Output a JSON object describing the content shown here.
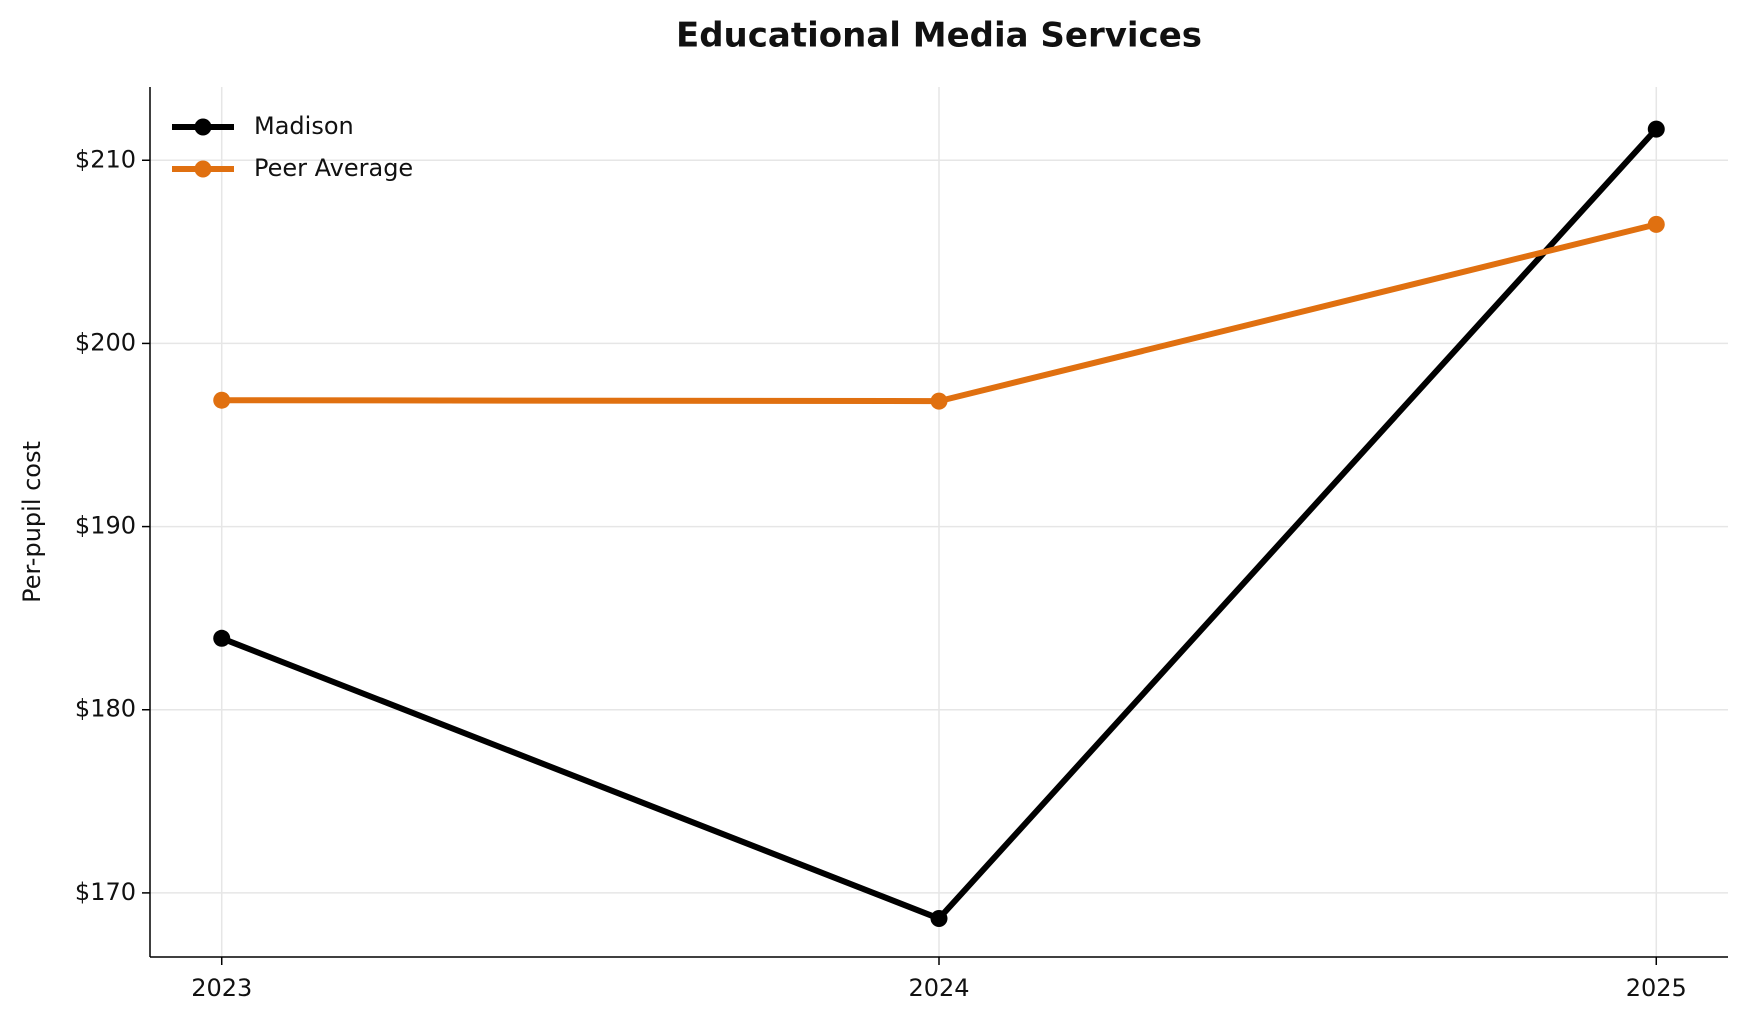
{
  "chart_data": {
    "type": "line",
    "title": "Educational Media Services",
    "y_label": "Per-pupil cost",
    "x": [
      2023,
      2024,
      2025
    ],
    "series": [
      {
        "name": "Madison",
        "color": "#000000",
        "values": [
          183.9,
          168.6,
          211.7
        ]
      },
      {
        "name": "Peer Average",
        "color": "#e07010",
        "values": [
          196.9,
          196.85,
          206.5
        ]
      }
    ],
    "xlim": [
      2022.9,
      2025.1
    ],
    "xticks": [
      2023,
      2024,
      2025
    ],
    "ylim": [
      166.5,
      214
    ],
    "yticks": [
      {
        "value": 170,
        "label": "$170"
      },
      {
        "value": 180,
        "label": "$180"
      },
      {
        "value": 190,
        "label": "$190"
      },
      {
        "value": 200,
        "label": "$200"
      },
      {
        "value": 210,
        "label": "$210"
      }
    ],
    "grid": true,
    "legend": "upper-left"
  }
}
